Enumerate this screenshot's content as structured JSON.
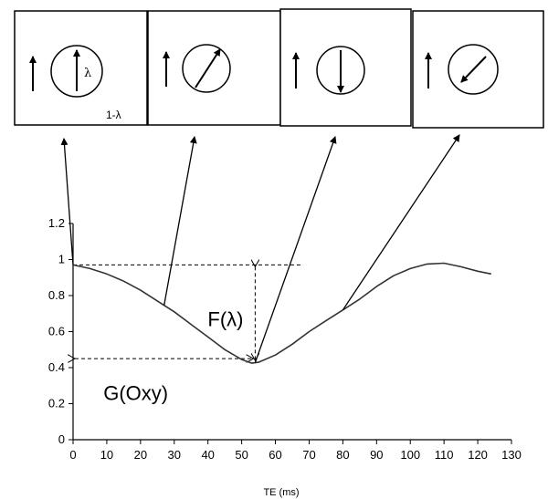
{
  "chart_data": {
    "type": "line",
    "title": "",
    "xlabel": "TE (ms)",
    "ylabel": "",
    "xlim": [
      0,
      130
    ],
    "ylim": [
      0,
      1.2
    ],
    "x_ticks": [
      "0",
      "10",
      "20",
      "30",
      "40",
      "50",
      "60",
      "70",
      "80",
      "90",
      "100",
      "110",
      "120",
      "130"
    ],
    "y_ticks": [
      "0",
      "0.2",
      "0.4",
      "0.6",
      "0.8",
      "1",
      "1.2"
    ],
    "grid": false,
    "series": [
      {
        "x": [
          0,
          5,
          10,
          15,
          20,
          25,
          30,
          35,
          40,
          45,
          50,
          53,
          55,
          60,
          65,
          70,
          75,
          80,
          85,
          90,
          95,
          100,
          105,
          110,
          115,
          120,
          124
        ],
        "y": [
          0.97,
          0.95,
          0.92,
          0.88,
          0.83,
          0.77,
          0.71,
          0.64,
          0.57,
          0.5,
          0.445,
          0.425,
          0.43,
          0.47,
          0.53,
          0.6,
          0.66,
          0.72,
          0.78,
          0.85,
          0.91,
          0.95,
          0.975,
          0.98,
          0.96,
          0.935,
          0.92
        ]
      }
    ],
    "annotations": [
      {
        "text": "F(λ)",
        "x": 54,
        "from_y": 0.97,
        "to_y": 0.43
      },
      {
        "text": "G(Oxy)",
        "y": 0.45,
        "from_x": 0,
        "to_x": 54
      }
    ],
    "reference_lines": {
      "horizontal_y": [
        0.97,
        0.45
      ],
      "vertical_x": [
        54
      ]
    }
  },
  "panels": [
    {
      "arrow": "up",
      "label_lambda": "λ",
      "label_one_minus": "1-λ",
      "points_to_te": 0
    },
    {
      "arrow": "upper-right",
      "points_to_te": 27
    },
    {
      "arrow": "down",
      "points_to_te": 54
    },
    {
      "arrow": "lower-left",
      "points_to_te": 80
    }
  ]
}
